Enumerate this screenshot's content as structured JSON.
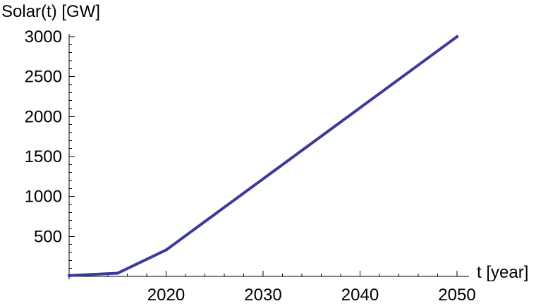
{
  "chart_data": {
    "type": "line",
    "title": "",
    "xlabel": "t [year]",
    "ylabel": "Solar(t) [GW]",
    "xlim": [
      2010,
      2050
    ],
    "ylim": [
      0,
      3000
    ],
    "x_ticks": [
      2020,
      2030,
      2040,
      2050
    ],
    "x_tick_labels": [
      "2020",
      "2030",
      "2040",
      "2050"
    ],
    "y_ticks": [
      500,
      1000,
      1500,
      2000,
      2500,
      3000
    ],
    "y_tick_labels": [
      "500",
      "1000",
      "1500",
      "2000",
      "2500",
      "3000"
    ],
    "grid": false,
    "legend": "none",
    "series": [
      {
        "x": [
          2010,
          2015,
          2020,
          2050
        ],
        "y": [
          10,
          40,
          330,
          3000
        ]
      }
    ],
    "line_color": "#3b3b99"
  }
}
